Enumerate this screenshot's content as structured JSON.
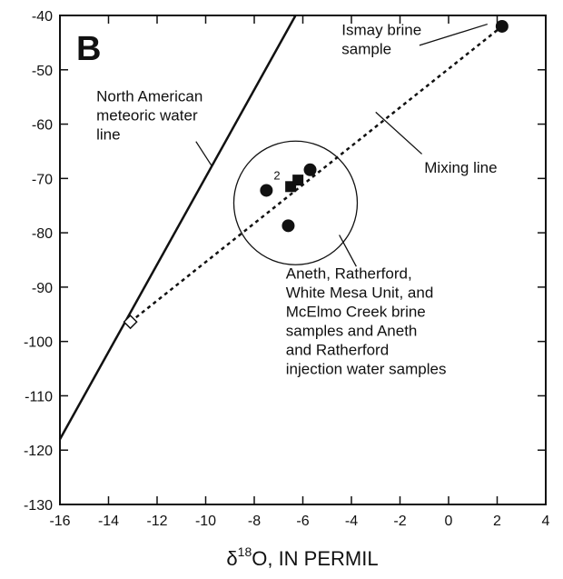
{
  "chart_data": {
    "type": "scatter",
    "panel_label": "B",
    "xlabel": {
      "prefix": "δ",
      "sup": "18",
      "suffix": "O, IN PERMIL"
    },
    "ylabel": "",
    "xlim": [
      -16,
      4
    ],
    "ylim": [
      -130,
      -40
    ],
    "xticks": [
      -16,
      -14,
      -12,
      -10,
      -8,
      -6,
      -4,
      -2,
      0,
      2,
      4
    ],
    "yticks": [
      -130,
      -120,
      -110,
      -100,
      -90,
      -80,
      -70,
      -60,
      -50,
      -40
    ],
    "grid": false,
    "lines": [
      {
        "style": "solid",
        "points": [
          [
            -16,
            -118
          ],
          [
            -6.3,
            -40
          ]
        ]
      },
      {
        "style": "dashed",
        "points": [
          [
            -13.1,
            -96.4
          ],
          [
            2.2,
            -42
          ]
        ]
      }
    ],
    "series": [
      {
        "marker": "circle",
        "points": [
          {
            "x": -7.5,
            "y": -72.2,
            "label": "2"
          },
          {
            "x": -6.6,
            "y": -78.7,
            "label": ""
          },
          {
            "x": -5.7,
            "y": -68.4,
            "label": ""
          },
          {
            "x": 2.2,
            "y": -42.0,
            "label": ""
          }
        ]
      },
      {
        "marker": "square",
        "points": [
          {
            "x": -6.5,
            "y": -71.5
          },
          {
            "x": -6.2,
            "y": -70.3
          }
        ]
      },
      {
        "marker": "open-diamond",
        "points": [
          {
            "x": -13.1,
            "y": -96.4
          }
        ]
      }
    ],
    "circle_group": {
      "cx": -6.3,
      "cy": -74.5
    },
    "annotations": [
      {
        "id": "meteoric",
        "lines": [
          "North American",
          "meteoric water",
          "line"
        ],
        "x": -14.5,
        "y": -55.8,
        "leader_from": [
          -10.4,
          -63.2
        ],
        "leader_to": [
          -9.75,
          -67.7
        ]
      },
      {
        "id": "ismay",
        "lines": [
          "Ismay brine",
          "sample"
        ],
        "x": -4.4,
        "y": -43.6,
        "leader_from": [
          -1.2,
          -45.5
        ],
        "leader_to": [
          1.6,
          -41.6
        ]
      },
      {
        "id": "mixing",
        "lines": [
          "Mixing line"
        ],
        "x": -1.0,
        "y": -68.9,
        "leader_from": [
          -1.1,
          -65.5
        ],
        "leader_to": [
          -3.0,
          -57.8
        ]
      },
      {
        "id": "aneth",
        "lines": [
          "Aneth, Ratherford,",
          "White Mesa Unit, and",
          "McElmo Creek brine",
          "samples and Aneth",
          "and Ratherford",
          "injection water samples"
        ],
        "x": -6.7,
        "y": -88.4,
        "leader_from": [
          -3.8,
          -86.2
        ],
        "leader_to": [
          -4.5,
          -80.4
        ]
      }
    ]
  }
}
